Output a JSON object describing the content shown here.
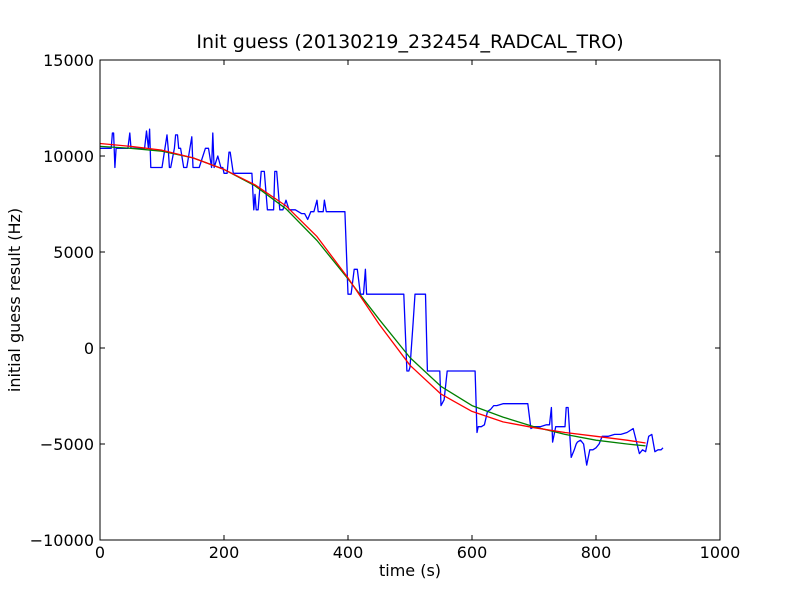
{
  "chart_data": {
    "type": "line",
    "title": "Init guess (20130219_232454_RADCAL_TRO)",
    "xlabel": "time (s)",
    "ylabel": "initial guess result (Hz)",
    "xlim": [
      0,
      1000
    ],
    "ylim": [
      -10000,
      15000
    ],
    "xticks": [
      0,
      200,
      400,
      600,
      800,
      1000
    ],
    "yticks": [
      -10000,
      -5000,
      0,
      5000,
      10000,
      15000
    ],
    "grid": false,
    "series": [
      {
        "color": "#0000ff",
        "x": [
          0,
          18,
          20,
          22,
          24,
          26,
          40,
          45,
          48,
          50,
          52,
          60,
          72,
          75,
          78,
          80,
          82,
          90,
          100,
          108,
          110,
          112,
          114,
          120,
          122,
          125,
          127,
          130,
          135,
          140,
          145,
          148,
          150,
          152,
          160,
          170,
          175,
          180,
          182,
          184,
          190,
          195,
          198,
          200,
          205,
          208,
          210,
          215,
          220,
          225,
          230,
          235,
          245,
          248,
          250,
          252,
          255,
          260,
          265,
          270,
          272,
          275,
          280,
          282,
          285,
          290,
          295,
          300,
          305,
          310,
          315,
          320,
          325,
          330,
          335,
          340,
          345,
          350,
          352,
          355,
          360,
          362,
          365,
          370,
          375,
          380,
          385,
          390,
          395,
          400,
          402,
          405,
          410,
          415,
          420,
          425,
          428,
          430,
          432,
          435,
          440,
          445,
          450,
          455,
          460,
          470,
          480,
          490,
          495,
          498,
          500,
          505,
          508,
          510,
          520,
          525,
          528,
          530,
          535,
          540,
          545,
          548,
          550,
          555,
          560,
          570,
          580,
          590,
          595,
          600,
          605,
          608,
          610,
          615,
          620,
          625,
          630,
          635,
          640,
          650,
          660,
          665,
          670,
          680,
          690,
          695,
          700,
          705,
          710,
          720,
          725,
          728,
          730,
          735,
          745,
          750,
          752,
          755,
          760,
          765,
          768,
          770,
          775,
          780,
          785,
          790,
          795,
          800,
          805,
          810,
          820,
          830,
          840,
          850,
          860,
          870,
          875,
          880,
          885,
          890,
          895,
          900,
          905,
          908
        ],
        "values": [
          10400,
          10400,
          11200,
          11200,
          9400,
          10400,
          10400,
          10400,
          11200,
          10400,
          10400,
          10400,
          10400,
          11300,
          10400,
          11400,
          9400,
          9400,
          9400,
          11100,
          10400,
          9400,
          9400,
          10400,
          11100,
          11100,
          10400,
          10400,
          9400,
          9400,
          10400,
          11000,
          9400,
          9400,
          9400,
          10400,
          10400,
          9400,
          11200,
          9400,
          10000,
          9400,
          9400,
          9100,
          9100,
          10200,
          10200,
          9100,
          9100,
          9100,
          9100,
          9100,
          9100,
          7200,
          8000,
          7200,
          7200,
          9200,
          9200,
          7200,
          7200,
          7200,
          7200,
          9200,
          9200,
          7200,
          7200,
          7700,
          7200,
          7200,
          7200,
          7100,
          7000,
          7000,
          6700,
          7100,
          7100,
          7700,
          7100,
          7100,
          7100,
          7700,
          7100,
          7100,
          7100,
          7100,
          7100,
          7100,
          7100,
          2800,
          2800,
          2800,
          4100,
          4100,
          2800,
          2800,
          4100,
          2800,
          2800,
          2800,
          2800,
          2800,
          2800,
          2800,
          2800,
          2800,
          2800,
          2800,
          -1200,
          -1200,
          -1000,
          1300,
          2800,
          2800,
          2800,
          2800,
          -1200,
          -1200,
          -1200,
          -1200,
          -1200,
          -1200,
          -3000,
          -2700,
          -1200,
          -1200,
          -1200,
          -1200,
          -1200,
          -1200,
          -1200,
          -4400,
          -4100,
          -4100,
          -4000,
          -3300,
          -3200,
          -3000,
          -3000,
          -2900,
          -2900,
          -2900,
          -2900,
          -2900,
          -2900,
          -4200,
          -4100,
          -4100,
          -4100,
          -4000,
          -4000,
          -3100,
          -4900,
          -4100,
          -4100,
          -4100,
          -3100,
          -3100,
          -5700,
          -5300,
          -5000,
          -4900,
          -4800,
          -5000,
          -6100,
          -5300,
          -5300,
          -5200,
          -5000,
          -4600,
          -4600,
          -4500,
          -4500,
          -4400,
          -4200,
          -5500,
          -5300,
          -5400,
          -4600,
          -4500,
          -5400,
          -5300,
          -5300,
          -5200
        ]
      },
      {
        "color": "#008000",
        "x": [
          0,
          50,
          100,
          150,
          200,
          250,
          300,
          350,
          400,
          450,
          500,
          550,
          600,
          650,
          700,
          750,
          800,
          850,
          880
        ],
        "values": [
          10500,
          10400,
          10250,
          9900,
          9300,
          8450,
          7250,
          5600,
          3600,
          1500,
          -500,
          -2000,
          -3000,
          -3600,
          -4100,
          -4500,
          -4800,
          -5000,
          -5100
        ]
      },
      {
        "color": "#ff0000",
        "x": [
          0,
          50,
          100,
          150,
          200,
          250,
          300,
          350,
          400,
          450,
          500,
          550,
          600,
          650,
          700,
          750,
          800,
          850,
          880
        ],
        "values": [
          10650,
          10500,
          10300,
          9900,
          9300,
          8500,
          7400,
          5800,
          3650,
          1250,
          -900,
          -2400,
          -3300,
          -3850,
          -4150,
          -4400,
          -4600,
          -4800,
          -4950
        ]
      }
    ]
  }
}
